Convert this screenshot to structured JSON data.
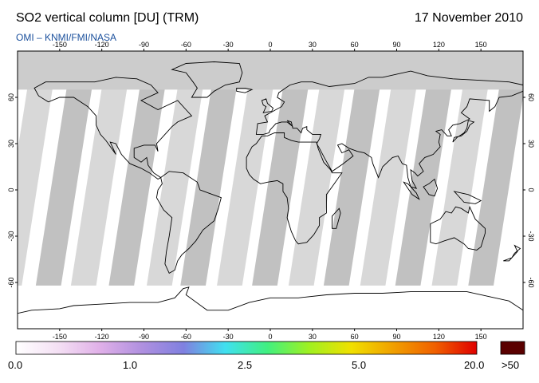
{
  "header": {
    "title": "SO2 vertical column [DU] (TRM)",
    "date": "17 November 2010",
    "credit": "OMI  –  KNMI/FMI/NASA"
  },
  "map": {
    "lon_ticks": [
      "-150",
      "-120",
      "-90",
      "-60",
      "-30",
      "0",
      "30",
      "60",
      "90",
      "120",
      "150"
    ],
    "lat_ticks": [
      "60",
      "30",
      "0",
      "-30",
      "-60"
    ],
    "lon_range": [
      -180,
      180
    ],
    "lat_range": [
      -90,
      90
    ],
    "no_data_lat_north": 65,
    "ocean_color": "#ffffff",
    "land_color": "#ffffff",
    "coast_color": "#000000",
    "no_data_color": "#cccccc",
    "swath_color": "#c8c8c8",
    "swath_over_land_color": "#a8a8a8"
  },
  "colorbar": {
    "labels": [
      "0.0",
      "1.0",
      "2.5",
      "5.0",
      "20.0",
      ">50"
    ],
    "colors": [
      "#ffffff",
      "#f4e0f4",
      "#e0b0e8",
      "#b090e0",
      "#8080e0",
      "#40e0f0",
      "#40f080",
      "#a0f020",
      "#f0e000",
      "#f0a000",
      "#f06000",
      "#e00000"
    ],
    "overflow_color": "#5a0000"
  }
}
